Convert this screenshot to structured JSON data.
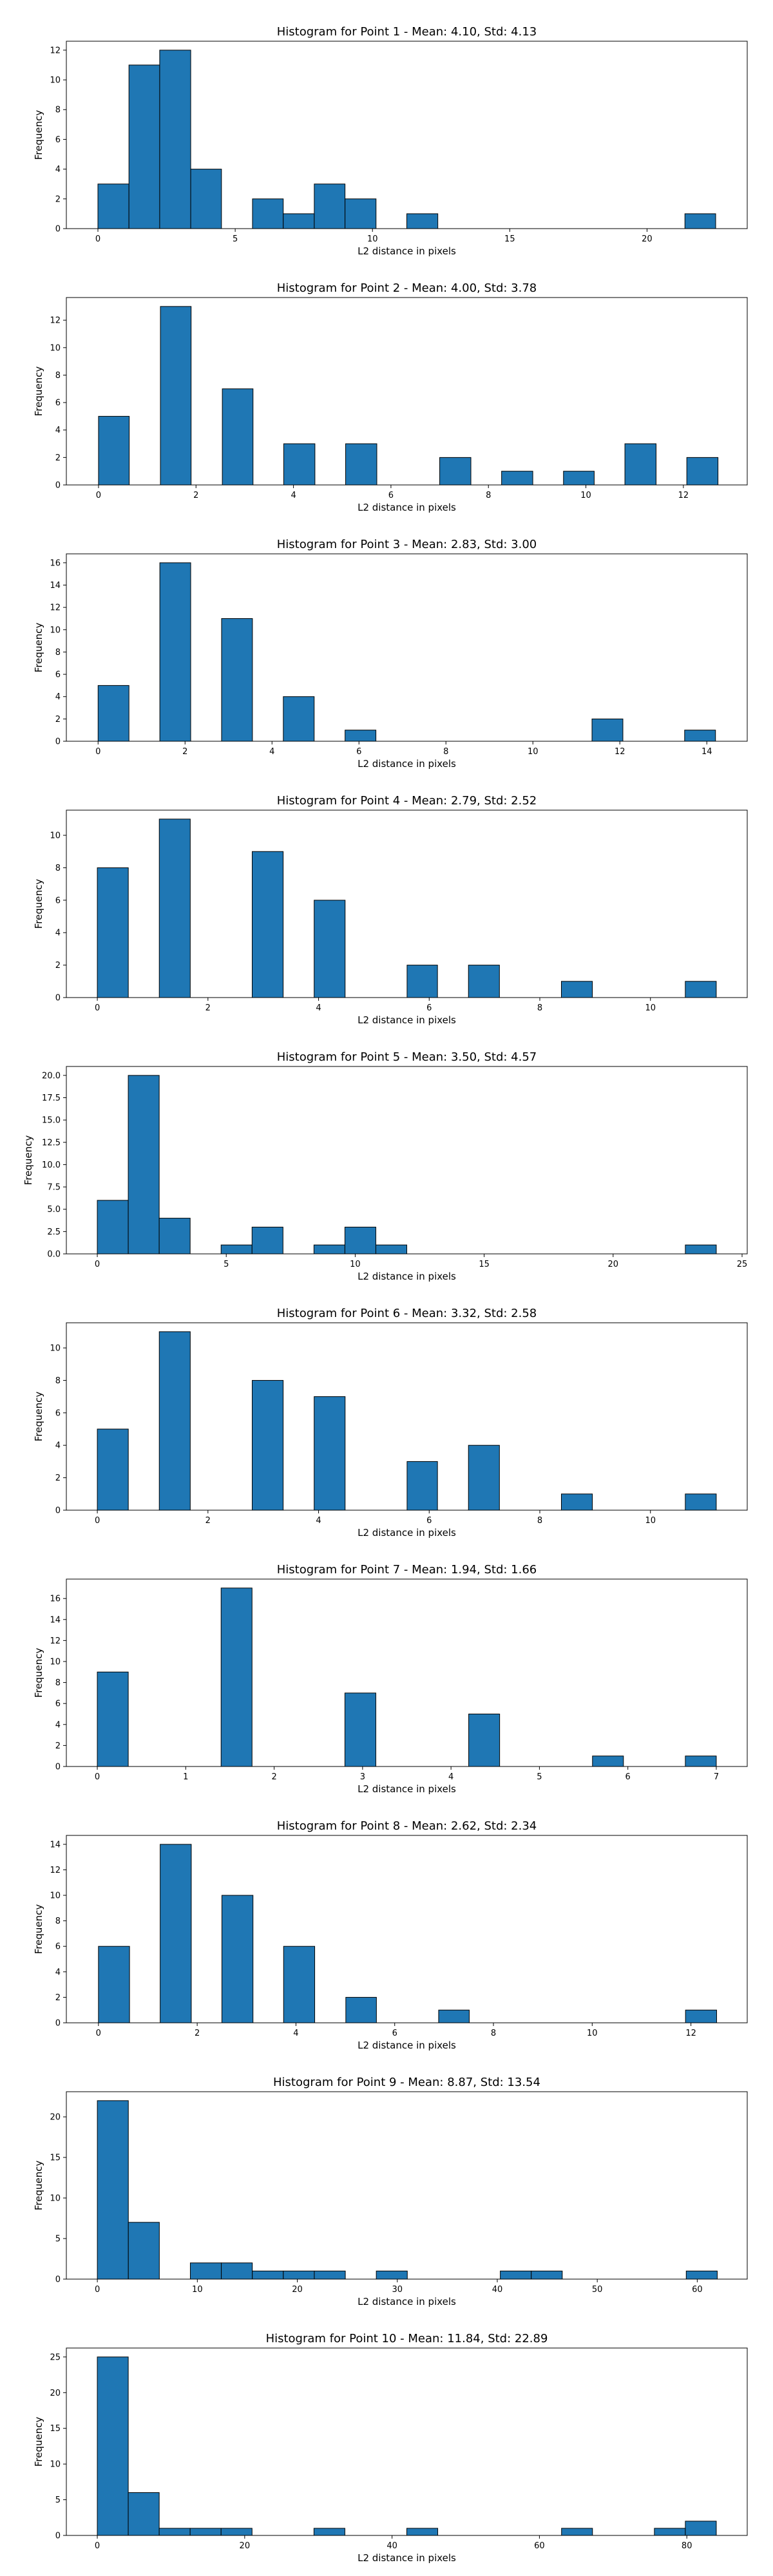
{
  "chart_data": [
    {
      "type": "bar",
      "title": "Histogram for Point 1 - Mean: 4.10, Std: 4.13",
      "xlabel": "L2 distance in pixels",
      "ylabel": "Frequency",
      "xlim": [
        -1.15,
        23.65
      ],
      "ylim": [
        0,
        12.6
      ],
      "xticks": [
        0,
        5,
        10,
        15,
        20
      ],
      "yticks": [
        0,
        2,
        4,
        6,
        8,
        10,
        12
      ],
      "ytick_labels": [
        "0",
        "2",
        "4",
        "6",
        "8",
        "10",
        "12"
      ],
      "bins": [
        [
          0,
          1.13,
          3
        ],
        [
          1.13,
          2.25,
          11
        ],
        [
          2.25,
          3.38,
          12
        ],
        [
          3.38,
          4.5,
          4
        ],
        [
          5.63,
          6.75,
          2
        ],
        [
          6.75,
          7.88,
          1
        ],
        [
          7.88,
          9.0,
          3
        ],
        [
          9.0,
          10.13,
          2
        ],
        [
          11.25,
          12.38,
          1
        ],
        [
          21.38,
          22.5,
          1
        ]
      ]
    },
    {
      "type": "bar",
      "title": "Histogram for Point 2 - Mean: 4.00, Std: 3.78",
      "xlabel": "L2 distance in pixels",
      "ylabel": "Frequency",
      "xlim": [
        -0.66,
        13.31
      ],
      "ylim": [
        0,
        13.65
      ],
      "xticks": [
        0,
        2,
        4,
        6,
        8,
        10,
        12
      ],
      "yticks": [
        0,
        2,
        4,
        6,
        8,
        10,
        12
      ],
      "ytick_labels": [
        "0",
        "2",
        "4",
        "6",
        "8",
        "10",
        "12"
      ],
      "bins": [
        [
          0,
          0.63,
          5
        ],
        [
          1.27,
          1.9,
          13
        ],
        [
          2.54,
          3.17,
          7
        ],
        [
          3.8,
          4.44,
          3
        ],
        [
          5.07,
          5.71,
          3
        ],
        [
          7.0,
          7.64,
          2
        ],
        [
          8.27,
          8.91,
          1
        ],
        [
          9.54,
          10.17,
          1
        ],
        [
          10.8,
          11.44,
          3
        ],
        [
          12.07,
          12.71,
          2
        ]
      ]
    },
    {
      "type": "bar",
      "title": "Histogram for Point 3 - Mean: 2.83, Std: 3.00",
      "xlabel": "L2 distance in pixels",
      "ylabel": "Frequency",
      "xlim": [
        -0.73,
        14.93
      ],
      "ylim": [
        0,
        16.8
      ],
      "xticks": [
        0,
        2,
        4,
        6,
        8,
        10,
        12,
        14
      ],
      "yticks": [
        0,
        2,
        4,
        6,
        8,
        10,
        12,
        14,
        16
      ],
      "ytick_labels": [
        "0",
        "2",
        "4",
        "6",
        "8",
        "10",
        "12",
        "14",
        "16"
      ],
      "bins": [
        [
          0,
          0.71,
          5
        ],
        [
          1.42,
          2.13,
          16
        ],
        [
          2.84,
          3.55,
          11
        ],
        [
          4.26,
          4.97,
          4
        ],
        [
          5.68,
          6.39,
          1
        ],
        [
          11.36,
          12.07,
          2
        ],
        [
          13.49,
          14.2,
          1
        ]
      ]
    },
    {
      "type": "bar",
      "title": "Histogram for Point 4 - Mean: 2.79, Std: 2.52",
      "xlabel": "L2 distance in pixels",
      "ylabel": "Frequency",
      "xlim": [
        -0.56,
        11.75
      ],
      "ylim": [
        0,
        11.55
      ],
      "xticks": [
        0,
        2,
        4,
        6,
        8,
        10
      ],
      "yticks": [
        0,
        2,
        4,
        6,
        8,
        10
      ],
      "ytick_labels": [
        "0",
        "2",
        "4",
        "6",
        "8",
        "10"
      ],
      "bins": [
        [
          0,
          0.56,
          8
        ],
        [
          1.12,
          1.68,
          11
        ],
        [
          2.24,
          2.8,
          0
        ],
        [
          2.8,
          3.36,
          9
        ],
        [
          3.92,
          4.48,
          6
        ],
        [
          5.6,
          6.15,
          2
        ],
        [
          6.71,
          7.27,
          2
        ],
        [
          8.39,
          8.95,
          1
        ],
        [
          10.63,
          11.19,
          1
        ]
      ]
    },
    {
      "type": "bar",
      "title": "Histogram for Point 5 - Mean: 3.50, Std: 4.57",
      "xlabel": "L2 distance in pixels",
      "ylabel": "Frequency",
      "xlim": [
        -1.2,
        25.2
      ],
      "ylim": [
        0,
        21
      ],
      "xticks": [
        0,
        5,
        10,
        15,
        20,
        25
      ],
      "yticks": [
        0,
        2.5,
        5,
        7.5,
        10,
        12.5,
        15,
        17.5,
        20
      ],
      "ytick_labels": [
        "0.0",
        "2.5",
        "5.0",
        "7.5",
        "10.0",
        "12.5",
        "15.0",
        "17.5",
        "20.0"
      ],
      "bins": [
        [
          0,
          1.2,
          6
        ],
        [
          1.2,
          2.4,
          20
        ],
        [
          2.4,
          3.6,
          4
        ],
        [
          4.8,
          6.0,
          1
        ],
        [
          6.0,
          7.2,
          3
        ],
        [
          8.4,
          9.6,
          1
        ],
        [
          9.6,
          10.8,
          3
        ],
        [
          10.8,
          12.0,
          1
        ],
        [
          22.8,
          24.0,
          1
        ]
      ]
    },
    {
      "type": "bar",
      "title": "Histogram for Point 6 - Mean: 3.32, Std: 2.58",
      "xlabel": "L2 distance in pixels",
      "ylabel": "Frequency",
      "xlim": [
        -0.56,
        11.75
      ],
      "ylim": [
        0,
        11.55
      ],
      "xticks": [
        0,
        2,
        4,
        6,
        8,
        10
      ],
      "yticks": [
        0,
        2,
        4,
        6,
        8,
        10
      ],
      "ytick_labels": [
        "0",
        "2",
        "4",
        "6",
        "8",
        "10"
      ],
      "bins": [
        [
          0,
          0.56,
          5
        ],
        [
          1.12,
          1.68,
          11
        ],
        [
          2.8,
          3.36,
          8
        ],
        [
          3.92,
          4.48,
          7
        ],
        [
          5.6,
          6.15,
          3
        ],
        [
          6.71,
          7.27,
          4
        ],
        [
          8.39,
          8.95,
          1
        ],
        [
          10.63,
          11.19,
          1
        ]
      ]
    },
    {
      "type": "bar",
      "title": "Histogram for Point 7 - Mean: 1.94, Std: 1.66",
      "xlabel": "L2 distance in pixels",
      "ylabel": "Frequency",
      "xlim": [
        -0.35,
        7.35
      ],
      "ylim": [
        0,
        17.85
      ],
      "xticks": [
        0,
        1,
        2,
        3,
        4,
        5,
        6,
        7
      ],
      "yticks": [
        0,
        2,
        4,
        6,
        8,
        10,
        12,
        14,
        16
      ],
      "ytick_labels": [
        "0",
        "2",
        "4",
        "6",
        "8",
        "10",
        "12",
        "14",
        "16"
      ],
      "bins": [
        [
          0,
          0.35,
          9
        ],
        [
          1.4,
          1.75,
          17
        ],
        [
          2.8,
          3.15,
          7
        ],
        [
          4.2,
          4.55,
          5
        ],
        [
          5.6,
          5.95,
          1
        ],
        [
          6.65,
          7.0,
          1
        ]
      ]
    },
    {
      "type": "bar",
      "title": "Histogram for Point 8 - Mean: 2.62, Std: 2.34",
      "xlabel": "L2 distance in pixels",
      "ylabel": "Frequency",
      "xlim": [
        -0.65,
        13.14
      ],
      "ylim": [
        0,
        14.7
      ],
      "xticks": [
        0,
        2,
        4,
        6,
        8,
        10,
        12
      ],
      "yticks": [
        0,
        2,
        4,
        6,
        8,
        10,
        12,
        14
      ],
      "ytick_labels": [
        "0",
        "2",
        "4",
        "6",
        "8",
        "10",
        "12",
        "14"
      ],
      "bins": [
        [
          0,
          0.63,
          6
        ],
        [
          1.25,
          1.88,
          14
        ],
        [
          2.5,
          3.13,
          10
        ],
        [
          3.75,
          4.38,
          6
        ],
        [
          5.01,
          5.63,
          2
        ],
        [
          6.89,
          7.51,
          1
        ],
        [
          11.89,
          12.52,
          1
        ]
      ]
    },
    {
      "type": "bar",
      "title": "Histogram for Point 9 - Mean: 8.87, Std: 13.54",
      "xlabel": "L2 distance in pixels",
      "ylabel": "Frequency",
      "xlim": [
        -3.1,
        65.0
      ],
      "ylim": [
        0,
        23.1
      ],
      "xticks": [
        0,
        10,
        20,
        30,
        40,
        50,
        60
      ],
      "yticks": [
        0,
        5,
        10,
        15,
        20
      ],
      "ytick_labels": [
        "0",
        "5",
        "10",
        "15",
        "20"
      ],
      "bins": [
        [
          0,
          3.1,
          22
        ],
        [
          3.1,
          6.2,
          7
        ],
        [
          9.3,
          12.4,
          2
        ],
        [
          12.4,
          15.5,
          2
        ],
        [
          15.5,
          18.6,
          1
        ],
        [
          18.6,
          21.7,
          1
        ],
        [
          21.7,
          24.8,
          1
        ],
        [
          27.9,
          31.0,
          1
        ],
        [
          40.3,
          43.4,
          1
        ],
        [
          43.4,
          46.5,
          1
        ],
        [
          58.9,
          62.0,
          1
        ]
      ]
    },
    {
      "type": "bar",
      "title": "Histogram for Point 10 - Mean: 11.84, Std: 22.89",
      "xlabel": "L2 distance in pixels",
      "ylabel": "Frequency",
      "xlim": [
        -4.2,
        88.2
      ],
      "ylim": [
        0,
        26.25
      ],
      "xticks": [
        0,
        20,
        40,
        60,
        80
      ],
      "yticks": [
        0,
        5,
        10,
        15,
        20,
        25
      ],
      "ytick_labels": [
        "0",
        "5",
        "10",
        "15",
        "20",
        "25"
      ],
      "bins": [
        [
          0,
          4.2,
          25
        ],
        [
          4.2,
          8.4,
          6
        ],
        [
          8.4,
          12.6,
          1
        ],
        [
          12.6,
          16.8,
          1
        ],
        [
          16.8,
          21.0,
          1
        ],
        [
          29.4,
          33.6,
          1
        ],
        [
          42.0,
          46.2,
          1
        ],
        [
          63.0,
          67.2,
          1
        ],
        [
          75.6,
          79.8,
          1
        ],
        [
          79.8,
          84.0,
          2
        ]
      ]
    }
  ]
}
